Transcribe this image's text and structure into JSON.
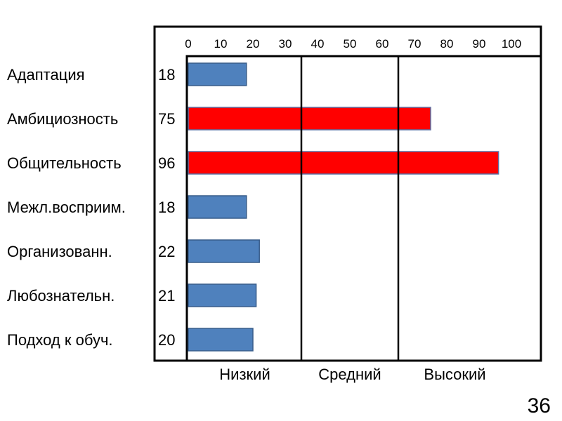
{
  "chart_data": {
    "type": "bar",
    "orientation": "horizontal",
    "categories": [
      "Адаптация",
      "Амбициозность",
      "Общительность",
      "Межл.восприим.",
      "Организованн.",
      "Любознательн.",
      "Подход к обуч."
    ],
    "values": [
      18,
      75,
      96,
      18,
      22,
      21,
      20
    ],
    "value_labels": [
      "18",
      "75",
      "96",
      "18",
      "22",
      "21",
      "20"
    ],
    "xlim": [
      0,
      100
    ],
    "x_ticks": [
      0,
      10,
      20,
      30,
      40,
      50,
      60,
      70,
      80,
      90,
      100
    ],
    "x_tick_position": "top",
    "grid": false,
    "zone_dividers": [
      35,
      65
    ],
    "zones": [
      "Низкий",
      "Средний",
      "Высокий"
    ],
    "highlight_threshold": 65,
    "colors": {
      "normal": "#4f81bd",
      "normal_stroke": "#385d8a",
      "highlight": "#ff0000",
      "highlight_stroke": "#5b6fa3",
      "frame": "#000000"
    }
  },
  "page": {
    "number": "36"
  }
}
